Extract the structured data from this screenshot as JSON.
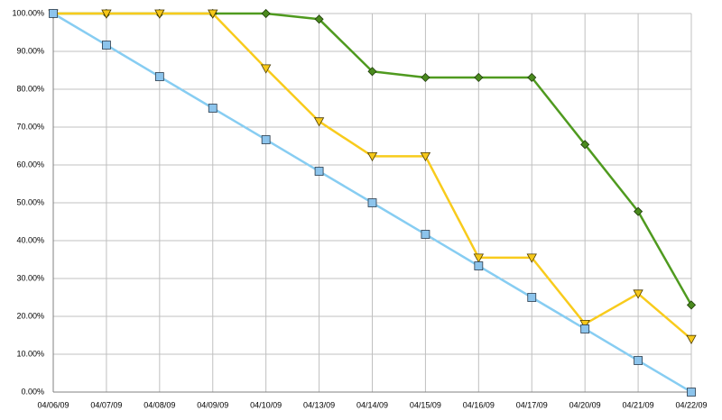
{
  "chart_data": {
    "type": "line",
    "categories": [
      "04/06/09",
      "04/07/09",
      "04/08/09",
      "04/09/09",
      "04/10/09",
      "04/13/09",
      "04/14/09",
      "04/15/09",
      "04/16/09",
      "04/17/09",
      "04/20/09",
      "04/21/09",
      "04/22/09"
    ],
    "series": [
      {
        "color": "#87cdf2",
        "marker": "square",
        "marker_color": "#8cc4ec",
        "values": [
          100,
          91.67,
          83.33,
          75,
          66.67,
          58.33,
          50,
          41.67,
          33.33,
          25,
          16.67,
          8.33,
          0
        ]
      },
      {
        "color": "#f8cb1c",
        "marker": "triangle-down",
        "marker_color": "#f6c81a",
        "values": [
          100,
          100,
          100,
          100,
          85.5,
          71.5,
          62.3,
          62.3,
          35.5,
          35.5,
          18,
          26,
          14
        ]
      },
      {
        "color": "#4f9a1f",
        "marker": "diamond",
        "marker_color": "#4a8a1e",
        "values": [
          100,
          100,
          100,
          100,
          100,
          98.5,
          84.7,
          83.1,
          83.1,
          83.1,
          65.4,
          47.7,
          23
        ]
      }
    ],
    "ylim": [
      0,
      100
    ],
    "yticks": [
      {
        "value": 0,
        "label": "0.00%"
      },
      {
        "value": 10,
        "label": "10.00%"
      },
      {
        "value": 20,
        "label": "20.00%"
      },
      {
        "value": 30,
        "label": "30.00%"
      },
      {
        "value": 40,
        "label": "40.00%"
      },
      {
        "value": 50,
        "label": "50.00%"
      },
      {
        "value": 60,
        "label": "60.00%"
      },
      {
        "value": 70,
        "label": "70.00%"
      },
      {
        "value": 80,
        "label": "80.00%"
      },
      {
        "value": 90,
        "label": "90.00%"
      },
      {
        "value": 100,
        "label": "100.00%"
      }
    ],
    "grid": true
  }
}
